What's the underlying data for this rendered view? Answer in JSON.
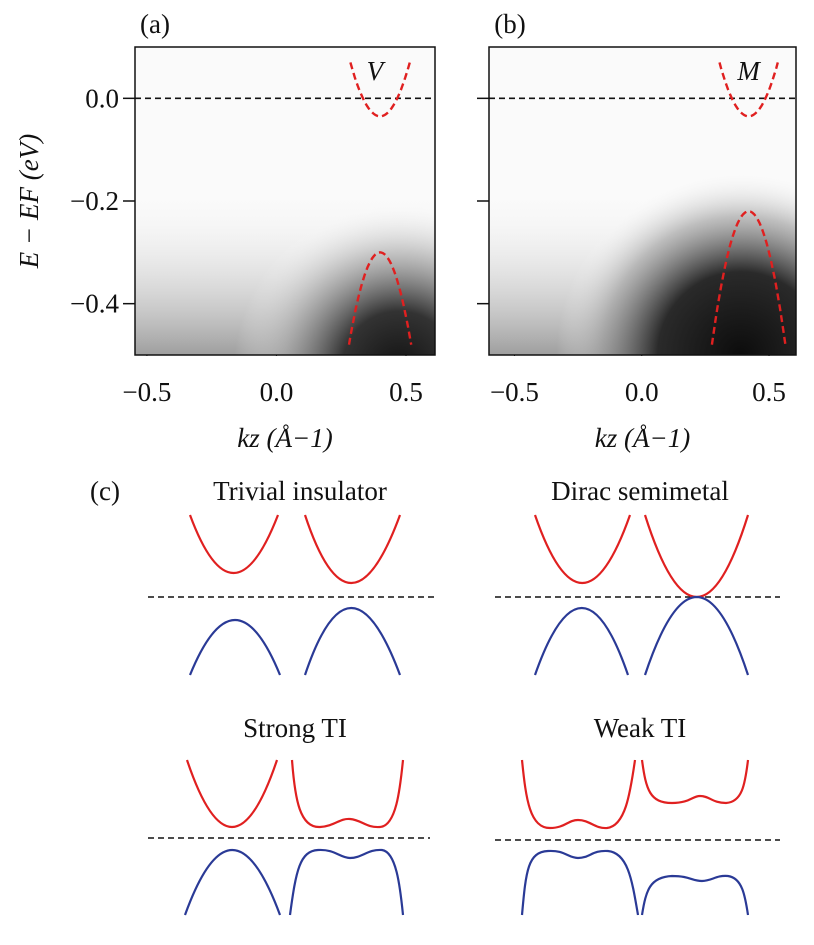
{
  "chart_data": [
    {
      "type": "image",
      "panel_label": "(a)",
      "annotation": "V",
      "xlabel": "kz (Å−1)",
      "ylabel": "E − EF (eV)",
      "xlim": [
        -0.546,
        0.612
      ],
      "ylim": [
        -0.5,
        0.1
      ],
      "xticks": [
        {
          "value": -0.5,
          "label": "−0.5"
        },
        {
          "value": 0,
          "label": "0.0"
        },
        0.5
      ],
      "yticks": [
        {
          "value": 0,
          "label": "0.0"
        },
        {
          "value": -0.2,
          "label": "−0.2"
        },
        {
          "value": -0.4,
          "label": "−0.4"
        }
      ]
    },
    {
      "type": "image",
      "panel_label": "(b)",
      "annotation": "M",
      "xlabel": "kz (Å−1)",
      "xlim": [
        -0.6,
        0.606
      ],
      "ylim": [
        -0.5,
        0.1
      ],
      "xticks": [
        {
          "value": -0.5,
          "label": "−0.5"
        },
        {
          "value": 0,
          "label": "0.0"
        },
        0.5
      ],
      "yticks": [
        0,
        -0.2,
        -0.4
      ]
    }
  ],
  "diagrams": {
    "panel_label": "(c)",
    "titles": [
      "Trivial insulator",
      "Dirac semimetal",
      "Strong TI",
      "Weak TI"
    ]
  }
}
